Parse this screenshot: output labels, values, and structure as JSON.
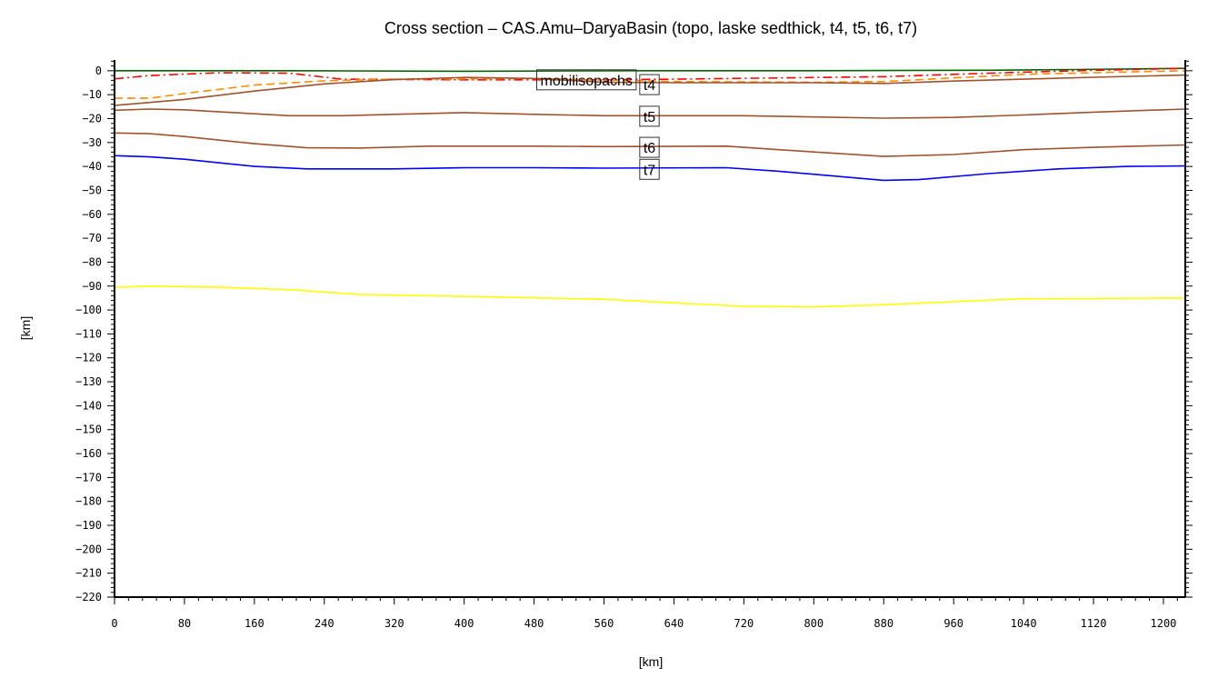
{
  "chart_data": {
    "type": "line",
    "title": "Cross section – CAS.Amu–DaryaBasin (topo, laske sedthick, t4, t5, t6, t7)",
    "xlabel": "[km]",
    "ylabel": "[km]",
    "xlim": [
      0,
      1225
    ],
    "ylim": [
      -220,
      4.5
    ],
    "xticks": [
      0,
      80,
      160,
      240,
      320,
      400,
      480,
      560,
      640,
      720,
      800,
      880,
      960,
      1040,
      1120,
      1200
    ],
    "yticks": [
      0,
      -10,
      -20,
      -30,
      -40,
      -50,
      -60,
      -70,
      -80,
      -90,
      -100,
      -110,
      -120,
      -130,
      -140,
      -150,
      -160,
      -170,
      -180,
      -190,
      -200,
      -210,
      -220
    ],
    "grid": false,
    "series": [
      {
        "color": "#006400",
        "style": "solid",
        "x": [
          0,
          200,
          400,
          600,
          800,
          1000,
          1100,
          1225
        ],
        "y": [
          0,
          0,
          -0.2,
          0,
          0,
          0.2,
          0.5,
          1
        ]
      },
      {
        "color": "#ff0000",
        "style": "dashdot",
        "x": [
          0,
          40,
          120,
          200,
          260,
          400,
          560,
          640,
          880,
          1000,
          1100,
          1225
        ],
        "y": [
          -3.4,
          -2,
          -0.8,
          -1,
          -3.5,
          -3.8,
          -3.8,
          -3.5,
          -2.5,
          -1,
          0,
          1
        ]
      },
      {
        "color": "#ff8c00",
        "style": "dashed",
        "x": [
          0,
          40,
          80,
          160,
          240,
          320,
          480,
          640,
          800,
          880,
          960,
          1040,
          1120,
          1225
        ],
        "y": [
          -11.5,
          -11.5,
          -9.5,
          -6,
          -4.2,
          -3.5,
          -3.2,
          -4.5,
          -4.8,
          -4.5,
          -3,
          -1.5,
          -0.8,
          0
        ]
      },
      {
        "name": "t4",
        "color": "#a0522d",
        "style": "solid",
        "x": [
          0,
          80,
          160,
          240,
          320,
          400,
          480,
          560,
          640,
          800,
          880,
          960,
          1040,
          1120,
          1225
        ],
        "y": [
          -14.5,
          -12,
          -8.5,
          -5.5,
          -3.7,
          -2.8,
          -3.2,
          -4.8,
          -5,
          -5,
          -5.3,
          -4.3,
          -3.5,
          -2.7,
          -1.8
        ]
      },
      {
        "name": "t5",
        "color": "#a0522d",
        "style": "solid",
        "x": [
          0,
          40,
          80,
          160,
          200,
          260,
          320,
          400,
          480,
          560,
          720,
          880,
          960,
          1040,
          1120,
          1225
        ],
        "y": [
          -16.5,
          -16,
          -16.3,
          -18,
          -18.8,
          -18.8,
          -18.2,
          -17.5,
          -18.2,
          -18.8,
          -18.8,
          -19.8,
          -19.5,
          -18.5,
          -17.3,
          -16
        ]
      },
      {
        "name": "t6",
        "color": "#a0522d",
        "style": "solid",
        "x": [
          0,
          40,
          80,
          160,
          220,
          280,
          360,
          480,
          560,
          700,
          760,
          880,
          960,
          1040,
          1120,
          1225
        ],
        "y": [
          -26,
          -26.3,
          -27.5,
          -30.5,
          -32.2,
          -32.3,
          -31.5,
          -31.5,
          -31.7,
          -31.5,
          -33,
          -35.8,
          -35,
          -33,
          -32,
          -31
        ]
      },
      {
        "name": "t7",
        "color": "#0000ff",
        "style": "solid",
        "x": [
          0,
          40,
          80,
          160,
          220,
          320,
          400,
          480,
          560,
          700,
          760,
          880,
          920,
          1000,
          1080,
          1160,
          1225
        ],
        "y": [
          -35.5,
          -36,
          -37,
          -40,
          -41,
          -41,
          -40.5,
          -40.5,
          -40.7,
          -40.5,
          -42,
          -45.8,
          -45.5,
          -43,
          -41,
          -40,
          -39.8
        ]
      },
      {
        "color": "#ffff00",
        "style": "solid",
        "x": [
          0,
          40,
          120,
          200,
          280,
          400,
          560,
          720,
          800,
          880,
          960,
          1040,
          1225
        ],
        "y": [
          -90.5,
          -90,
          -90.5,
          -91.5,
          -93.5,
          -94.3,
          -95.5,
          -98.5,
          -98.7,
          -97.8,
          -96.5,
          -95.3,
          -95
        ]
      }
    ],
    "annotations": [
      {
        "text": "mobilisopachs",
        "x": 616,
        "y": -3.8
      },
      {
        "text": "t4",
        "x": 612,
        "y": -5.8
      },
      {
        "text": "t5",
        "x": 612,
        "y": -19
      },
      {
        "text": "t6",
        "x": 612,
        "y": -32
      },
      {
        "text": "t7",
        "x": 612,
        "y": -41.2
      }
    ]
  }
}
